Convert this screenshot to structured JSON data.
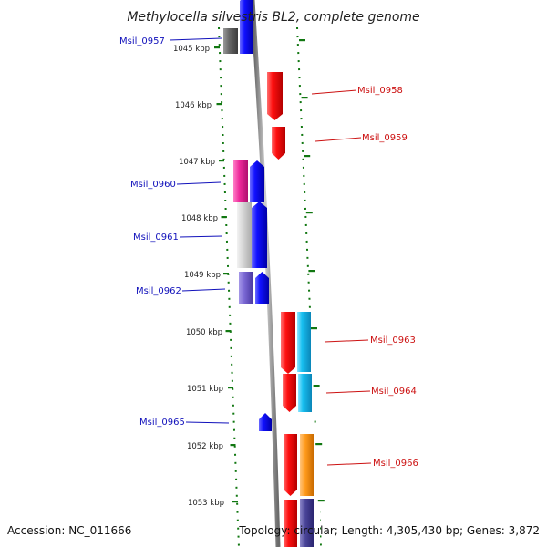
{
  "title": "Methylocella silvestris BL2, complete genome",
  "ticks": [
    "1045 kbp",
    "1046 kbp",
    "1047 kbp",
    "1048 kbp",
    "1049 kbp",
    "1050 kbp",
    "1051 kbp",
    "1052 kbp",
    "1053 kbp"
  ],
  "genes": [
    {
      "name": "Msil_0957",
      "strand": "reverse",
      "color": "#1111cc"
    },
    {
      "name": "Msil_0958",
      "strand": "forward",
      "color": "#dd1111"
    },
    {
      "name": "Msil_0959",
      "strand": "forward",
      "color": "#dd1111"
    },
    {
      "name": "Msil_0960",
      "strand": "reverse",
      "color": "#1111cc"
    },
    {
      "name": "Msil_0961",
      "strand": "reverse",
      "color": "#1111cc"
    },
    {
      "name": "Msil_0962",
      "strand": "reverse",
      "color": "#1111cc"
    },
    {
      "name": "Msil_0963",
      "strand": "forward",
      "color": "#dd1111"
    },
    {
      "name": "Msil_0964",
      "strand": "forward",
      "color": "#dd1111"
    },
    {
      "name": "Msil_0965",
      "strand": "reverse",
      "color": "#1111cc"
    },
    {
      "name": "Msil_0966",
      "strand": "forward",
      "color": "#dd1111"
    }
  ],
  "footer": {
    "accession": "Accession: NC_011666",
    "topology": "Topology: circular; Length: 4,305,430 bp; Genes: 3,872"
  },
  "colors": {
    "forward_cds": "#ee0000",
    "reverse_cds": "#0000ee",
    "tick_green": "#117711",
    "backbone": "#888888"
  }
}
